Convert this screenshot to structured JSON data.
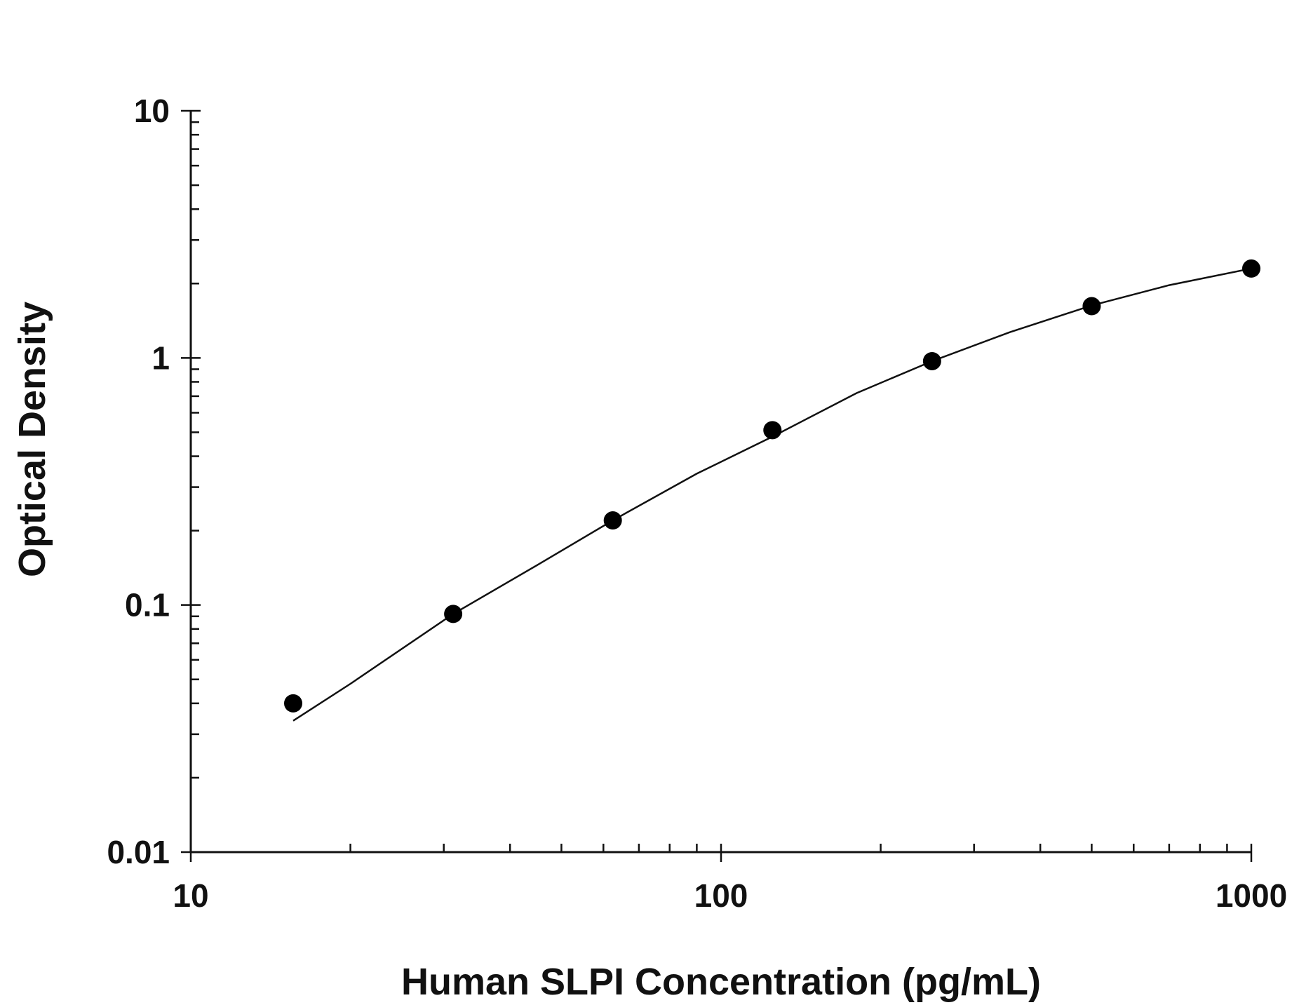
{
  "chart_data": {
    "type": "scatter",
    "title": "",
    "xlabel": "Human SLPI Concentration (pg/mL)",
    "ylabel": "Optical Density",
    "x_scale": "log",
    "y_scale": "log",
    "xlim": [
      10,
      1000
    ],
    "ylim": [
      0.01,
      10
    ],
    "x_tick_labels": [
      "10",
      "100",
      "1000"
    ],
    "y_tick_labels": [
      "0.01",
      "0.1",
      "1",
      "10"
    ],
    "grid": false,
    "legend": "none",
    "series": [
      {
        "marker": "filled-circle",
        "x": [
          15.6,
          31.25,
          62.5,
          125,
          250,
          500,
          1000
        ],
        "y": [
          0.04,
          0.092,
          0.22,
          0.51,
          0.97,
          1.62,
          2.3
        ]
      }
    ],
    "fit_curve": {
      "style": "solid-line",
      "x": [
        15.6,
        20,
        31.25,
        45,
        62.5,
        90,
        125,
        180,
        250,
        350,
        500,
        700,
        1000
      ],
      "y": [
        0.034,
        0.048,
        0.092,
        0.145,
        0.22,
        0.34,
        0.48,
        0.72,
        0.97,
        1.27,
        1.63,
        1.97,
        2.3
      ]
    }
  }
}
